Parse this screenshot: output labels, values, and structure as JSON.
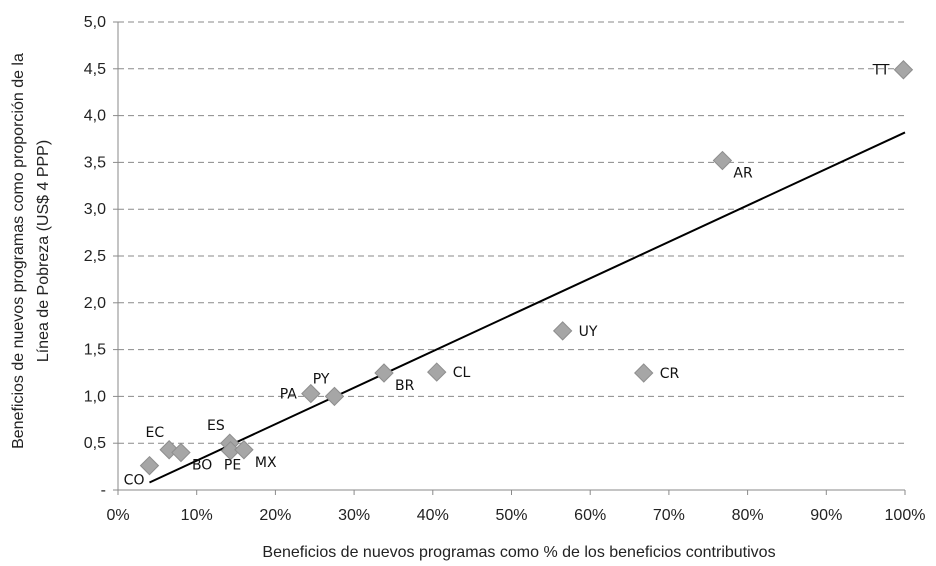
{
  "chart_data": {
    "type": "scatter",
    "title": "",
    "xlabel": "Beneficios de nuevos programas como % de los beneficios contributivos",
    "ylabel_line1": "Beneficios de nuevos programas como proporción de la",
    "ylabel_line2": "Línea de Pobreza  (US$ 4 PPP)",
    "xlim": [
      0,
      100
    ],
    "ylim": [
      0,
      5
    ],
    "x_ticks": [
      0,
      10,
      20,
      30,
      40,
      50,
      60,
      70,
      80,
      90,
      100
    ],
    "x_tick_labels": [
      "0%",
      "10%",
      "20%",
      "30%",
      "40%",
      "50%",
      "60%",
      "70%",
      "80%",
      "90%",
      "100%"
    ],
    "y_ticks": [
      0,
      0.5,
      1,
      1.5,
      2,
      2.5,
      3,
      3.5,
      4,
      4.5,
      5
    ],
    "y_tick_labels": [
      "-",
      "0,5",
      "1,0",
      "1,5",
      "2,0",
      "2,5",
      "3,0",
      "3,5",
      "4,0",
      "4,5",
      "5,0"
    ],
    "grid": "horizontal dashed",
    "marker": "diamond",
    "marker_color": "#a6a6a6",
    "trendline_color": "#000000",
    "trendline": {
      "x": [
        4,
        100
      ],
      "y": [
        0.08,
        3.82
      ]
    },
    "points": [
      {
        "label": "CO",
        "x": 4,
        "y": 0.26,
        "pos": "below-left"
      },
      {
        "label": "EC",
        "x": 6.5,
        "y": 0.43,
        "pos": "above-left"
      },
      {
        "label": "BO",
        "x": 8,
        "y": 0.4,
        "pos": "below-right"
      },
      {
        "label": "ES",
        "x": 14.2,
        "y": 0.5,
        "pos": "above-left"
      },
      {
        "label": "PE",
        "x": 14.3,
        "y": 0.42,
        "pos": "below"
      },
      {
        "label": "MX",
        "x": 16,
        "y": 0.43,
        "pos": "below-right"
      },
      {
        "label": "PA",
        "x": 24.5,
        "y": 1.03,
        "pos": "left"
      },
      {
        "label": "PY",
        "x": 27.5,
        "y": 1.0,
        "pos": "above-left"
      },
      {
        "label": "BR",
        "x": 33.8,
        "y": 1.25,
        "pos": "below-right"
      },
      {
        "label": "CL",
        "x": 40.5,
        "y": 1.26,
        "pos": "right"
      },
      {
        "label": "UY",
        "x": 56.5,
        "y": 1.7,
        "pos": "right"
      },
      {
        "label": "CR",
        "x": 66.8,
        "y": 1.25,
        "pos": "right"
      },
      {
        "label": "AR",
        "x": 76.8,
        "y": 3.52,
        "pos": "below-right"
      },
      {
        "label": "TT",
        "x": 99.8,
        "y": 4.49,
        "pos": "left"
      }
    ]
  }
}
